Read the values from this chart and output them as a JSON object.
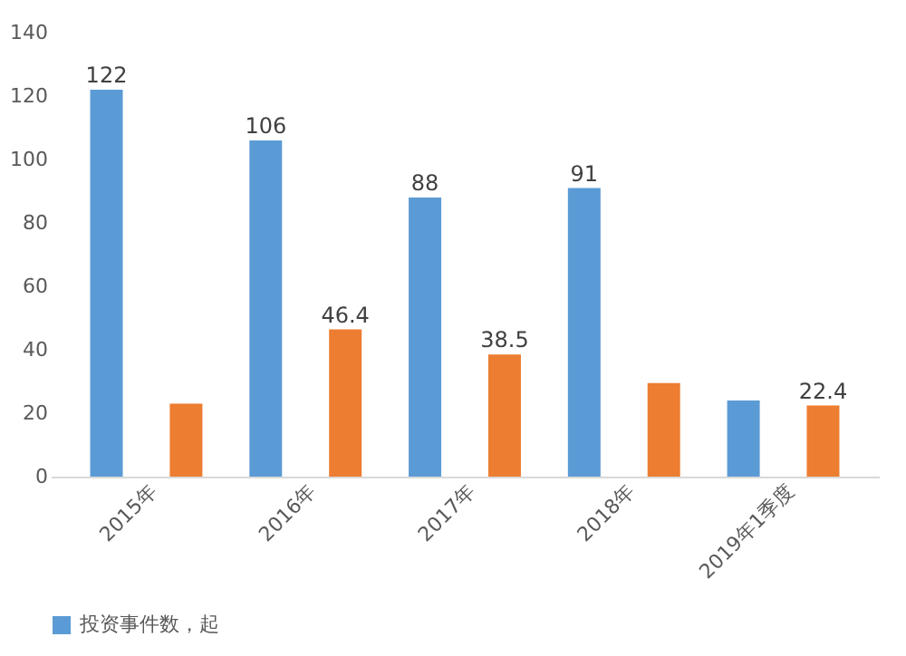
{
  "chart_data": {
    "type": "bar",
    "categories": [
      "2015年",
      "2016年",
      "2017年",
      "2018年",
      "2019年1季度"
    ],
    "series": [
      {
        "name": "投资事件数，起",
        "color": "#5b9bd5",
        "values": [
          122,
          106,
          88,
          91,
          24
        ],
        "value_labels": [
          "122",
          "106",
          "88",
          "91",
          null
        ]
      },
      {
        "color": "#ed7d31",
        "values": [
          23,
          46.4,
          38.5,
          29.5,
          22.4
        ],
        "value_labels": [
          null,
          "46.4",
          "38.5",
          null,
          "22.4"
        ]
      }
    ],
    "ylim": [
      0,
      140
    ],
    "yticks": [
      0,
      20,
      40,
      60,
      80,
      100,
      120,
      140
    ],
    "grid": false,
    "legend": "bottom"
  }
}
